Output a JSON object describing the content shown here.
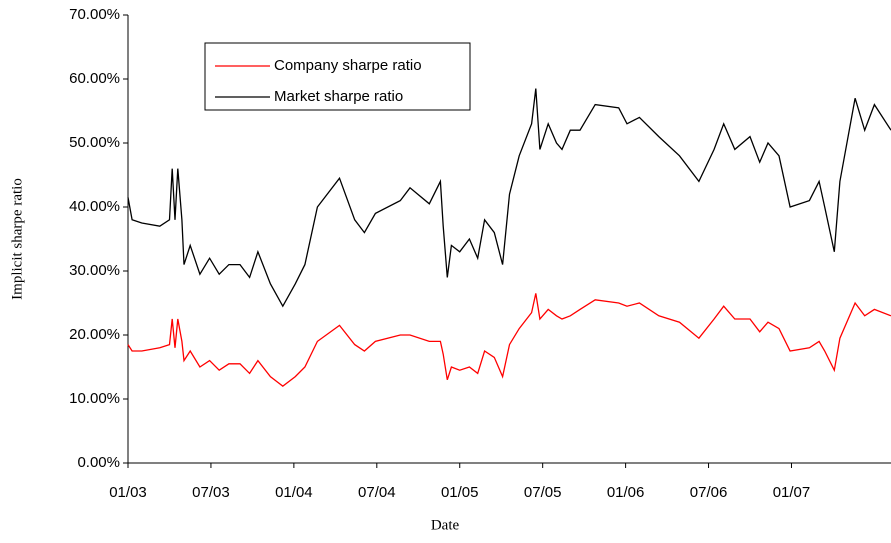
{
  "chart_data": {
    "type": "line",
    "xlabel": "Date",
    "ylabel": "Implicit sharpe ratio",
    "x": [
      0,
      0.3,
      1,
      2.3,
      3,
      3.2,
      3.4,
      3.6,
      3.9,
      4.05,
      4.5,
      5.2,
      5.9,
      6.6,
      7.3,
      8.1,
      8.8,
      9.4,
      10.3,
      11.2,
      12.1,
      12.8,
      13.7,
      15.3,
      16.4,
      17.1,
      17.9,
      19.7,
      20.4,
      21.8,
      22.6,
      22.8,
      23.1,
      23.4,
      24,
      24.7,
      25.3,
      25.8,
      26.5,
      27.1,
      27.6,
      28.3,
      29.2,
      29.5,
      29.8,
      30.4,
      31,
      31.4,
      32,
      32.7,
      33.8,
      35.5,
      36.1,
      37,
      38.4,
      39.9,
      41.3,
      42.4,
      43.1,
      43.9,
      45,
      45.7,
      46.3,
      47.1,
      47.9,
      49.3,
      50,
      50.4,
      51.1,
      51.5,
      52.6,
      53.3,
      54,
      55.2
    ],
    "series": [
      {
        "name": "Company sharpe ratio",
        "color": "#ff0000",
        "values": [
          18.5,
          17.5,
          17.5,
          18,
          18.5,
          22.5,
          18,
          22.5,
          19,
          16,
          17.5,
          15,
          16,
          14.5,
          15.5,
          15.5,
          14,
          16,
          13.5,
          12,
          13.5,
          15,
          19,
          21.5,
          18.5,
          17.5,
          19,
          20,
          20,
          19,
          19,
          17,
          13,
          15,
          14.5,
          15,
          14,
          17.5,
          16.5,
          13.5,
          18.5,
          21,
          23.5,
          26.5,
          22.5,
          24,
          23,
          22.5,
          23,
          24,
          25.5,
          25,
          24.5,
          25,
          23,
          22,
          19.5,
          22.5,
          24.5,
          22.5,
          22.5,
          20.5,
          22,
          21,
          17.5,
          18,
          19,
          17.5,
          14.5,
          19.5,
          25,
          23,
          24,
          23
        ]
      },
      {
        "name": "Market sharpe ratio",
        "color": "#000000",
        "values": [
          41.5,
          38,
          37.5,
          37,
          38,
          46,
          38,
          46,
          38,
          31,
          34,
          29.5,
          32,
          29.5,
          31,
          31,
          29,
          33,
          28,
          24.5,
          28,
          31,
          40,
          44.5,
          38,
          36,
          39,
          41,
          43,
          40.5,
          44,
          37,
          29,
          34,
          33,
          35,
          32,
          38,
          36,
          31,
          42,
          48,
          53,
          58.5,
          49,
          53,
          50,
          49,
          52,
          52,
          56,
          55.5,
          53,
          54,
          51,
          48,
          44,
          49,
          53,
          49,
          51,
          47,
          50,
          48,
          40,
          41,
          44,
          40,
          33,
          44,
          57,
          52,
          56,
          52
        ]
      }
    ],
    "xlim": [
      0,
      55.2
    ],
    "xticks": [
      {
        "value": 0,
        "label": "01/03"
      },
      {
        "value": 6,
        "label": "07/03"
      },
      {
        "value": 12,
        "label": "01/04"
      },
      {
        "value": 18,
        "label": "07/04"
      },
      {
        "value": 24,
        "label": "01/05"
      },
      {
        "value": 30,
        "label": "07/05"
      },
      {
        "value": 36,
        "label": "01/06"
      },
      {
        "value": 42,
        "label": "07/06"
      },
      {
        "value": 48,
        "label": "01/07"
      }
    ],
    "ylim": [
      0,
      70
    ],
    "yticks": [
      {
        "value": 0,
        "label": "0.00%"
      },
      {
        "value": 10,
        "label": "10.00%"
      },
      {
        "value": 20,
        "label": "20.00%"
      },
      {
        "value": 30,
        "label": "30.00%"
      },
      {
        "value": 40,
        "label": "40.00%"
      },
      {
        "value": 50,
        "label": "50.00%"
      },
      {
        "value": 60,
        "label": "60.00%"
      },
      {
        "value": 70,
        "label": "70.00%"
      }
    ]
  }
}
